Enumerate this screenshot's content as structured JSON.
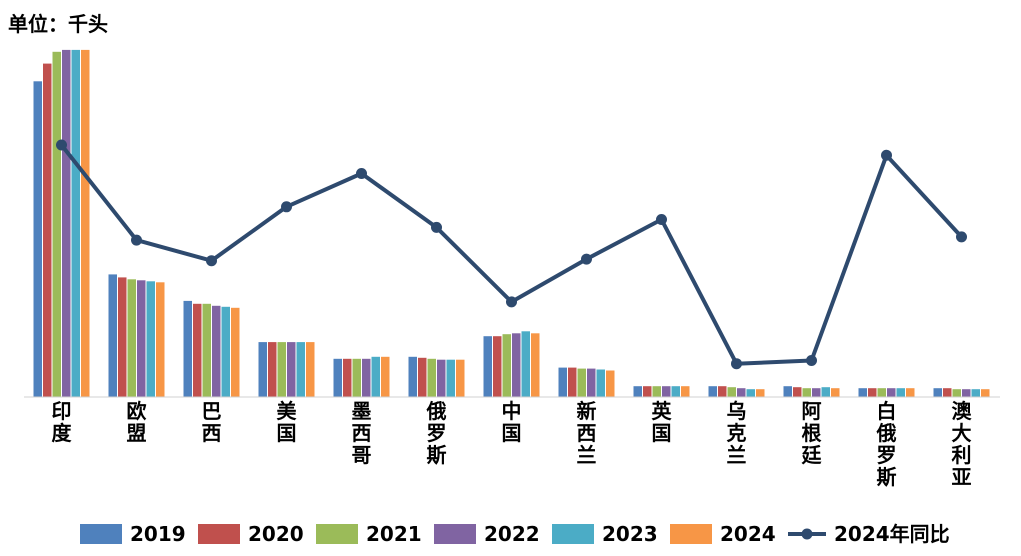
{
  "unit_label": "单位：千头",
  "chart_data": {
    "type": "bar",
    "categories": [
      "印度",
      "欧盟",
      "巴西",
      "美国",
      "墨西哥",
      "俄罗斯",
      "中国",
      "新西兰",
      "英国",
      "乌克兰",
      "阿根廷",
      "白俄罗斯",
      "澳大利亚"
    ],
    "series": [
      {
        "name": "2019",
        "color": "#4F81BD",
        "values": [
          322,
          125,
          98,
          56,
          39,
          41,
          62,
          30,
          11,
          11,
          11,
          9,
          9
        ]
      },
      {
        "name": "2020",
        "color": "#C0504D",
        "values": [
          340,
          122,
          95,
          56,
          39,
          40,
          62,
          30,
          11,
          11,
          10,
          9,
          9
        ]
      },
      {
        "name": "2021",
        "color": "#9BBB59",
        "values": [
          352,
          120,
          95,
          56,
          39,
          39,
          64,
          29,
          11,
          10,
          9,
          9,
          8
        ]
      },
      {
        "name": "2022",
        "color": "#8064A2",
        "values": [
          354,
          119,
          93,
          56,
          39,
          38,
          65,
          29,
          11,
          9,
          9,
          9,
          8
        ]
      },
      {
        "name": "2023",
        "color": "#4BACC6",
        "values": [
          354,
          118,
          92,
          56,
          41,
          38,
          67,
          28,
          11,
          8,
          10,
          9,
          8
        ]
      },
      {
        "name": "2024",
        "color": "#F79646",
        "values": [
          354,
          117,
          91,
          56,
          41,
          38,
          65,
          27,
          11,
          8,
          9,
          9,
          8
        ]
      }
    ],
    "line": {
      "name": "2024年同比",
      "color": "#2E4A6E",
      "values": [
        318,
        198,
        172,
        240,
        282,
        214,
        120,
        174,
        224,
        42,
        46,
        305,
        202
      ]
    },
    "legend_position": "bottom",
    "grid": false
  }
}
